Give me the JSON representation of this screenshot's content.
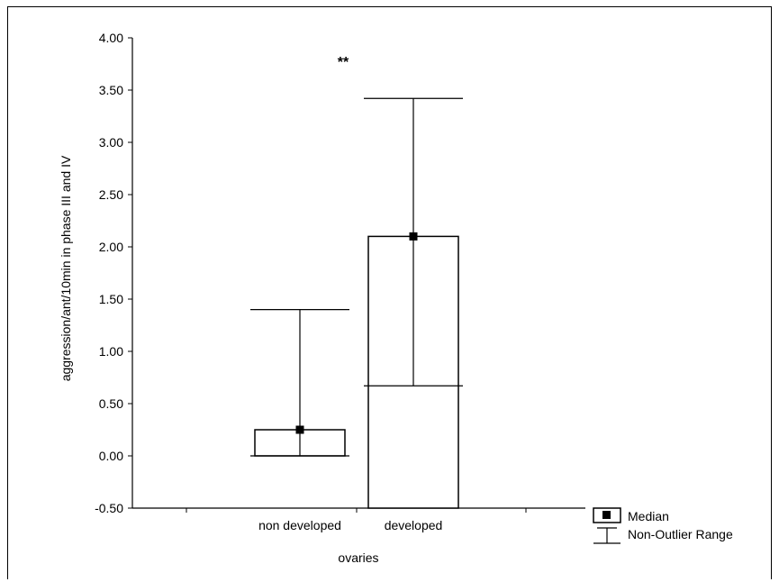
{
  "chart_data": {
    "type": "box",
    "title": "",
    "xlabel": "ovaries",
    "ylabel": "aggression/ant/10min in phase III and IV",
    "categories": [
      "non developed",
      "developed"
    ],
    "series": [
      {
        "category": "non developed",
        "median": 0.25,
        "box_low": 0.0,
        "box_high": 0.25,
        "whisker_low": 0.0,
        "whisker_high": 1.4
      },
      {
        "category": "developed",
        "median": 2.1,
        "box_low": -0.5,
        "box_high": 2.1,
        "whisker_low": 0.67,
        "whisker_high": 3.42
      }
    ],
    "ylim": [
      -0.5,
      4.0
    ],
    "yticks": [
      "-0.50",
      "0.00",
      "0.50",
      "1.00",
      "1.50",
      "2.00",
      "2.50",
      "3.00",
      "3.50",
      "4.00"
    ],
    "annotation": "**",
    "legend": [
      "Median",
      "Non-Outlier Range"
    ],
    "legend_position": "bottom-right",
    "grid": false
  }
}
